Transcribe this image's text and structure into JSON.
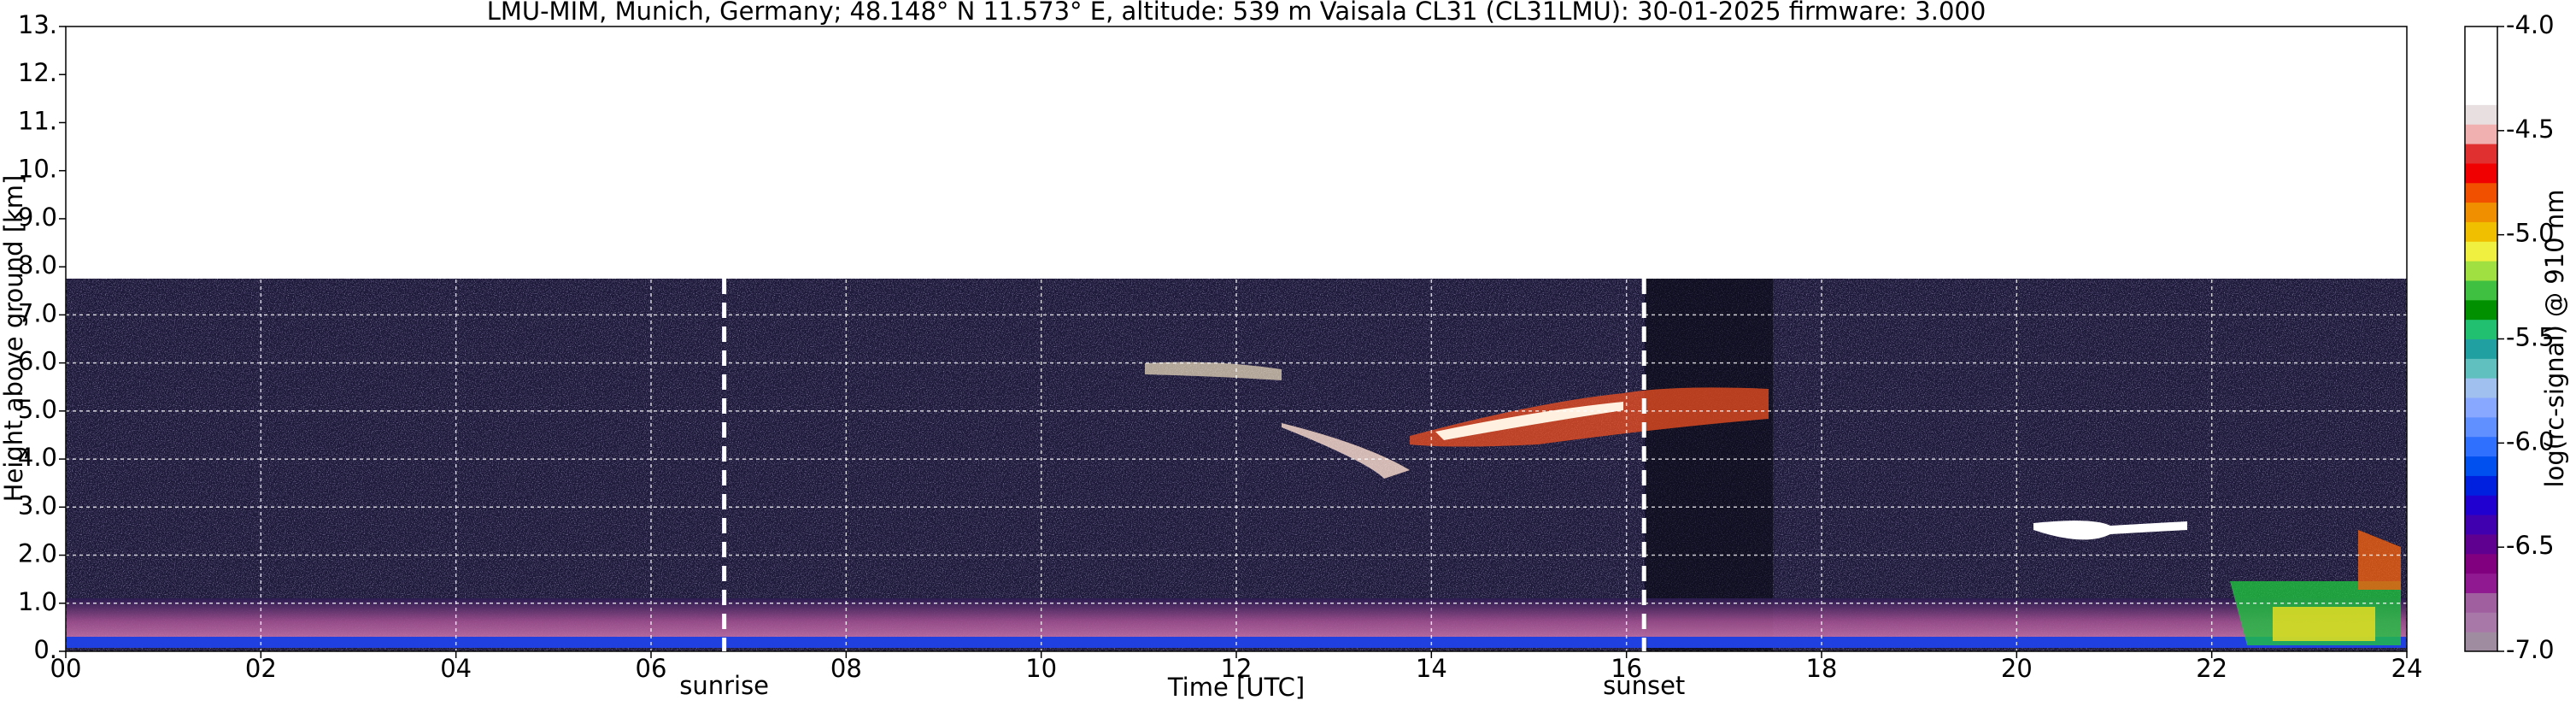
{
  "chart_data": {
    "type": "heatmap",
    "title": "LMU-MIM, Munich, Germany; 48.148° N 11.573° E, altitude: 539 m    Vaisala CL31 (CL31LMU): 30-01-2025    firmware: 3.000",
    "xlabel": "Time [UTC]",
    "ylabel": "Height above ground [km]",
    "xlim": [
      0,
      24
    ],
    "xticks": [
      {
        "value": 0,
        "label": "00"
      },
      {
        "value": 2,
        "label": "02"
      },
      {
        "value": 4,
        "label": "04"
      },
      {
        "value": 6,
        "label": "06"
      },
      {
        "value": 8,
        "label": "08"
      },
      10,
      12,
      14,
      16,
      18,
      20,
      22,
      24
    ],
    "ylim": [
      0,
      13
    ],
    "yticks": [
      {
        "value": 0,
        "label": "0."
      },
      {
        "value": 1,
        "label": "1.0"
      },
      {
        "value": 2,
        "label": "2.0"
      },
      {
        "value": 3,
        "label": "3.0"
      },
      {
        "value": 4,
        "label": "4.0"
      },
      {
        "value": 5,
        "label": "5.0"
      },
      {
        "value": 6,
        "label": "6.0"
      },
      {
        "value": 7,
        "label": "7.0"
      },
      {
        "value": 8,
        "label": "8.0"
      },
      {
        "value": 9,
        "label": "9.0"
      },
      {
        "value": 10,
        "label": "10."
      },
      {
        "value": 11,
        "label": "11."
      },
      {
        "value": 12,
        "label": "12."
      },
      {
        "value": 13,
        "label": "13."
      }
    ],
    "grid": true,
    "annotations": [
      {
        "text": "sunrise",
        "x": 6.75
      },
      {
        "text": "sunset",
        "x": 16.18
      }
    ],
    "colorbar": {
      "label": "log(rc-signal) @ 910 nm",
      "lim": [
        -7.0,
        -4.0
      ],
      "ticks": [
        {
          "value": -7.0,
          "label": "-7.0"
        },
        -6.5,
        {
          "value": -6.0,
          "label": "-6.0"
        },
        -5.5,
        {
          "value": -5.0,
          "label": "-5.0"
        },
        -4.5,
        {
          "value": -4.0,
          "label": "-4.0"
        }
      ],
      "colors": [
        "#a08ca0",
        "#a878a8",
        "#a060a0",
        "#901890",
        "#800080",
        "#600090",
        "#4000b0",
        "#2000d0",
        "#0020e0",
        "#0050f0",
        "#3070ff",
        "#6090ff",
        "#88a8ff",
        "#a0c0f0",
        "#60c0c0",
        "#20a0a0",
        "#20c070",
        "#009000",
        "#40c040",
        "#a0e040",
        "#f0f040",
        "#f0c000",
        "#f09000",
        "#f05000",
        "#f00000",
        "#e03030",
        "#f0b0b0",
        "#e8e0e0",
        "#ffffff",
        "#ffffff",
        "#ffffff",
        "#ffffff"
      ]
    }
  }
}
